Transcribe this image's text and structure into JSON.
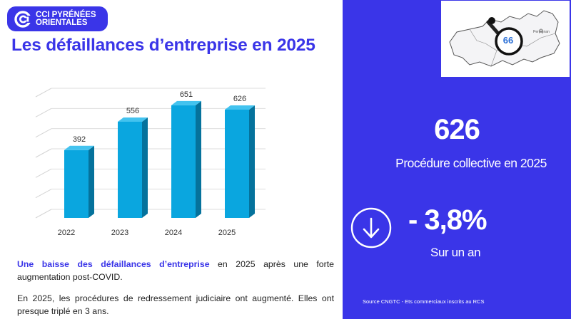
{
  "brand": {
    "line1": "CCI PYRÉNÉES",
    "line2": "ORIENTALES",
    "accent": "#3a35e8"
  },
  "title": "Les défaillances d’entreprise en 2025",
  "chart_data": {
    "type": "bar",
    "categories": [
      "2022",
      "2023",
      "2024",
      "2025"
    ],
    "values": [
      392,
      556,
      651,
      626
    ],
    "data_labels": [
      "392",
      "556",
      "651",
      "626"
    ],
    "title": "",
    "xlabel": "",
    "ylabel": "",
    "ylim": [
      0,
      700
    ],
    "grid": true,
    "style": "3d-columns",
    "bar_color": "#0aa6df"
  },
  "paragraphs": {
    "p1_highlight": "Une baisse des défaillances d’entreprise",
    "p1_rest": " en 2025 après une forte augmentation post-COVID.",
    "p2": "En 2025, les procédures de redressement judiciaire ont augmenté. Elles ont presque triplé en 3 ans."
  },
  "map": {
    "department_number": "66",
    "city_label": "Perpignan"
  },
  "kpi": {
    "value": "626",
    "caption": "Procédure collective en 2025",
    "change": "- 3,8%",
    "change_caption": "Sur un an",
    "direction_icon": "arrow-down-circle-icon"
  },
  "source": "Source CNGTC - Ets commerciaux inscrits au RCS"
}
